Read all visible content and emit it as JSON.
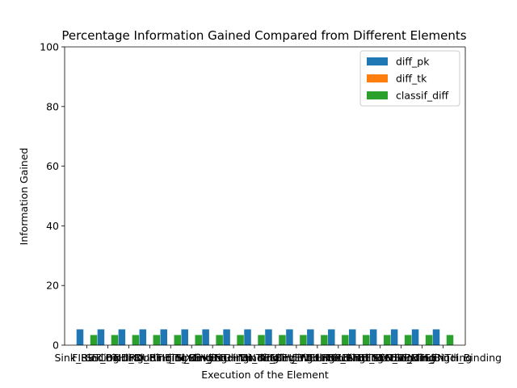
{
  "chart_data": {
    "type": "bar",
    "title": "Percentage Information Gained Compared from Different Elements",
    "xlabel": "Execution of the Element",
    "ylabel": "Information Gained",
    "ylim": [
      0,
      100
    ],
    "yticks": [
      0,
      20,
      40,
      60,
      80,
      100
    ],
    "grid": false,
    "legend_position": "top-right",
    "categories": [
      "Sink_Binding",
      "FIRST_Binding",
      "SECOND_Binding",
      "THIRD_Binding",
      "FOURTH_Binding",
      "FIFTH_Binding",
      "SIXTH_Binding",
      "SEVENTH_Binding",
      "EIGHTH_Binding",
      "NINTH_Binding",
      "TENTH_Binding",
      "ELEVENTH_Binding",
      "TWELFTH_Binding",
      "THIRTEENTH_Binding",
      "FOURTEENTH_Binding",
      "FIFTEENTH_Binding",
      "SIXTEENTH_Binding",
      "SEVENTEENTH_Binding"
    ],
    "series": [
      {
        "name": "diff_pk",
        "color": "#1f77b4",
        "values": [
          5.3,
          5.3,
          5.3,
          5.3,
          5.3,
          5.3,
          5.3,
          5.3,
          5.3,
          5.3,
          5.3,
          5.3,
          5.3,
          5.3,
          5.3,
          5.3,
          5.3,
          5.3
        ]
      },
      {
        "name": "diff_tk",
        "color": "#ff7f0e",
        "values": [
          0,
          0,
          0,
          0,
          0,
          0,
          0,
          0,
          0,
          0,
          0,
          0,
          0,
          0,
          0,
          0,
          0,
          0
        ]
      },
      {
        "name": "classif_diff",
        "color": "#2ca02c",
        "values": [
          3.4,
          3.4,
          3.4,
          3.4,
          3.4,
          3.4,
          3.4,
          3.4,
          3.4,
          3.4,
          3.4,
          3.4,
          3.4,
          3.4,
          3.4,
          3.4,
          3.4,
          3.4
        ]
      }
    ]
  }
}
